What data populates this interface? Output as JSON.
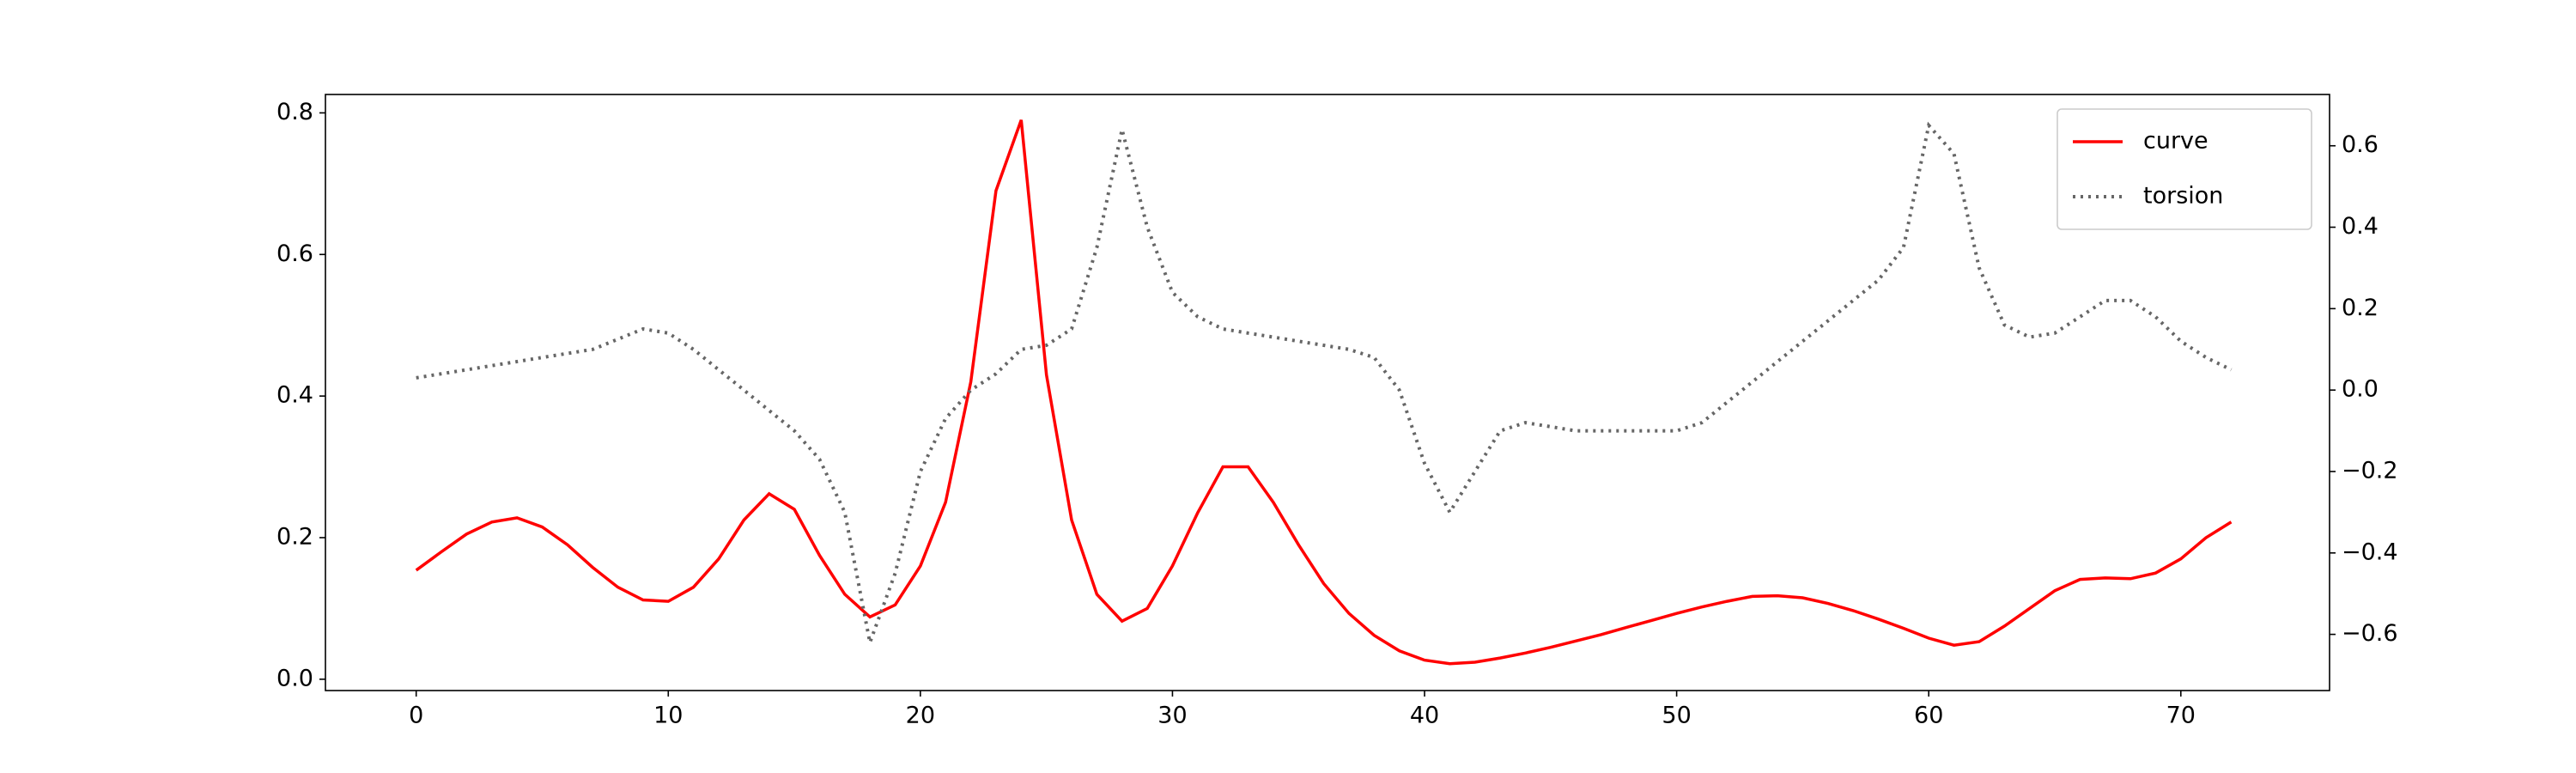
{
  "chart_data": {
    "type": "line",
    "x": [
      0,
      1,
      2,
      3,
      4,
      5,
      6,
      7,
      8,
      9,
      10,
      11,
      12,
      13,
      14,
      15,
      16,
      17,
      18,
      19,
      20,
      21,
      22,
      23,
      24,
      25,
      26,
      27,
      28,
      29,
      30,
      31,
      32,
      33,
      34,
      35,
      36,
      37,
      38,
      39,
      40,
      41,
      42,
      43,
      44,
      45,
      46,
      47,
      48,
      49,
      50,
      51,
      52,
      53,
      54,
      55,
      56,
      57,
      58,
      59,
      60,
      61,
      62,
      63,
      64,
      65,
      66,
      67,
      68,
      69,
      70,
      71,
      72
    ],
    "series": [
      {
        "name": "curve",
        "color": "#ff0000",
        "style": "solid",
        "axis": "y",
        "values": [
          0.154,
          0.18,
          0.205,
          0.222,
          0.228,
          0.215,
          0.19,
          0.158,
          0.13,
          0.112,
          0.11,
          0.13,
          0.17,
          0.225,
          0.262,
          0.24,
          0.175,
          0.12,
          0.088,
          0.105,
          0.16,
          0.25,
          0.42,
          0.69,
          0.79,
          0.43,
          0.225,
          0.12,
          0.082,
          0.1,
          0.16,
          0.235,
          0.3,
          0.3,
          0.25,
          0.19,
          0.135,
          0.093,
          0.062,
          0.04,
          0.027,
          0.022,
          0.024,
          0.03,
          0.037,
          0.045,
          0.054,
          0.063,
          0.073,
          0.083,
          0.093,
          0.102,
          0.11,
          0.117,
          0.118,
          0.115,
          0.107,
          0.097,
          0.085,
          0.072,
          0.058,
          0.048,
          0.053,
          0.075,
          0.1,
          0.125,
          0.141,
          0.143,
          0.142,
          0.15,
          0.17,
          0.2,
          0.222
        ]
      },
      {
        "name": "torsion",
        "color": "#666666",
        "style": "dotted",
        "axis": "y2",
        "values": [
          0.03,
          0.04,
          0.05,
          0.06,
          0.07,
          0.08,
          0.09,
          0.1,
          0.125,
          0.15,
          0.14,
          0.1,
          0.05,
          0.0,
          -0.05,
          -0.1,
          -0.17,
          -0.3,
          -0.62,
          -0.45,
          -0.2,
          -0.07,
          0.0,
          0.04,
          0.1,
          0.11,
          0.15,
          0.35,
          0.64,
          0.4,
          0.24,
          0.18,
          0.15,
          0.14,
          0.13,
          0.12,
          0.11,
          0.1,
          0.08,
          0.0,
          -0.18,
          -0.3,
          -0.2,
          -0.1,
          -0.08,
          -0.09,
          -0.1,
          -0.1,
          -0.1,
          -0.1,
          -0.1,
          -0.08,
          -0.03,
          0.02,
          0.07,
          0.12,
          0.17,
          0.22,
          0.27,
          0.35,
          0.65,
          0.58,
          0.3,
          0.16,
          0.13,
          0.14,
          0.18,
          0.22,
          0.22,
          0.18,
          0.12,
          0.08,
          0.05
        ]
      }
    ],
    "xlim": [
      -3.6,
      75.9
    ],
    "xticks": [
      0,
      10,
      20,
      30,
      40,
      50,
      60,
      70
    ],
    "ylim": [
      -0.016,
      0.826
    ],
    "yticks": [
      {
        "value": 0,
        "label": "0.0"
      },
      0.2,
      0.4,
      0.6,
      0.8
    ],
    "y2lim": [
      -0.738,
      0.726
    ],
    "y2ticks": [
      {
        "value": -0.6,
        "label": "−0.6"
      },
      {
        "value": -0.4,
        "label": "−0.4"
      },
      {
        "value": -0.2,
        "label": "−0.2"
      },
      {
        "value": 0,
        "label": "0.0"
      },
      0.2,
      0.4,
      0.6
    ],
    "legend": "upper right"
  }
}
